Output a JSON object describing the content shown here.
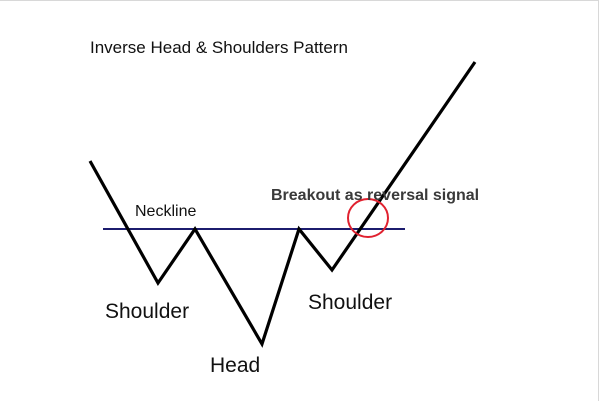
{
  "title": "Inverse Head & Shoulders Pattern",
  "labels": {
    "neckline": "Neckline",
    "left_shoulder": "Shoulder",
    "head": "Head",
    "right_shoulder": "Shoulder",
    "breakout": "Breakout as reversal signal"
  },
  "colors": {
    "price_line": "#000000",
    "neckline": "#1c1c6e",
    "breakout_circle": "#e0212f",
    "text": "#111111",
    "breakout_text": "#3a3a3a"
  }
}
